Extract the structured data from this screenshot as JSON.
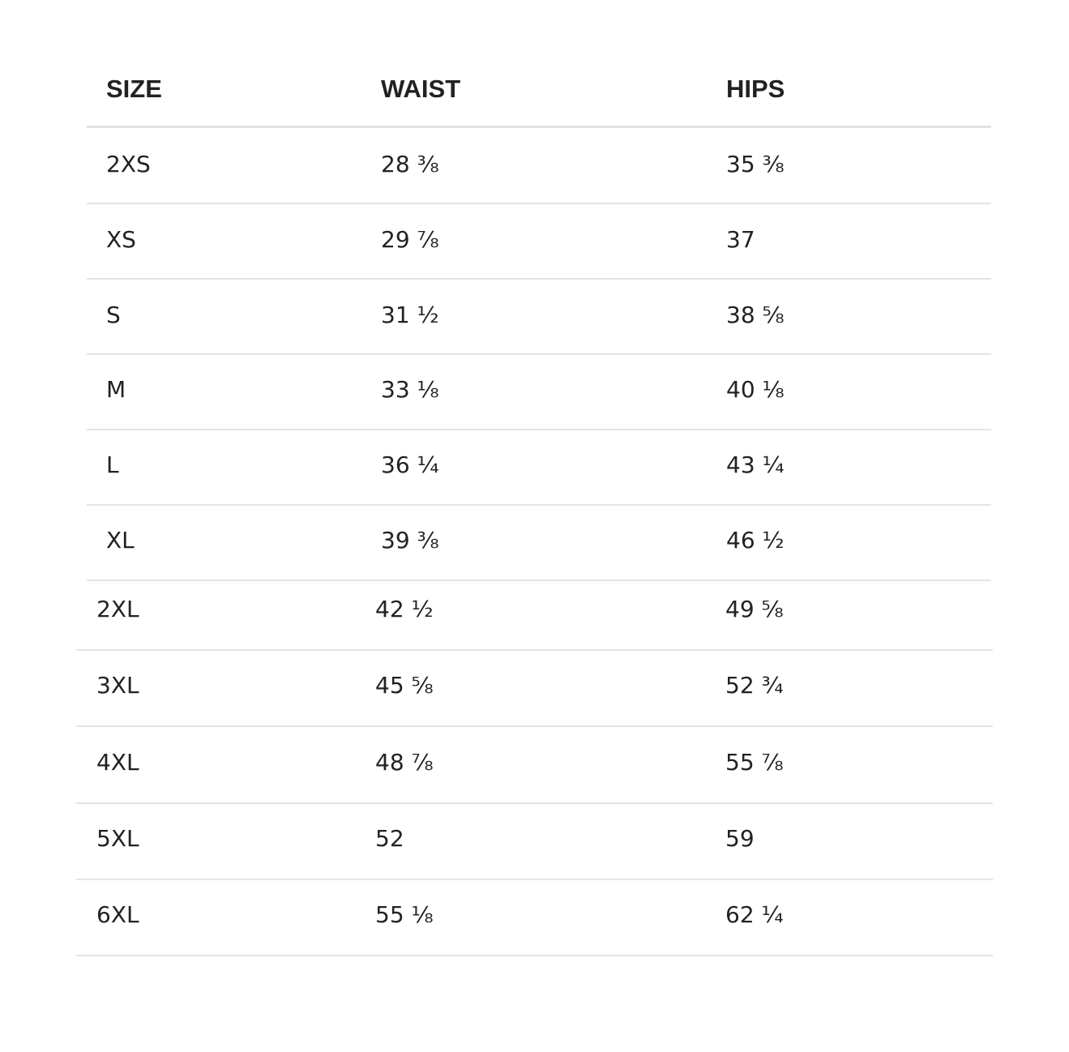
{
  "table": {
    "headers": [
      "SIZE",
      "WAIST",
      "HIPS"
    ],
    "rows": [
      [
        "2XS",
        "28 ⅜",
        "35 ⅜"
      ],
      [
        "XS",
        "29 ⅞",
        "37"
      ],
      [
        "S",
        "31 ½",
        "38 ⅝"
      ],
      [
        "M",
        "33 ⅛",
        "40 ⅛"
      ],
      [
        "L",
        "36 ¼",
        "43 ¼"
      ],
      [
        "XL",
        "39 ⅜",
        "46 ½"
      ],
      [
        "2XL",
        "42 ½",
        "49 ⅝"
      ],
      [
        "3XL",
        "45 ⅝",
        "52 ¾"
      ],
      [
        "4XL",
        "48 ⅞",
        "55 ⅞"
      ],
      [
        "5XL",
        "52",
        "59"
      ],
      [
        "6XL",
        "55 ⅛",
        "62 ¼"
      ]
    ]
  }
}
